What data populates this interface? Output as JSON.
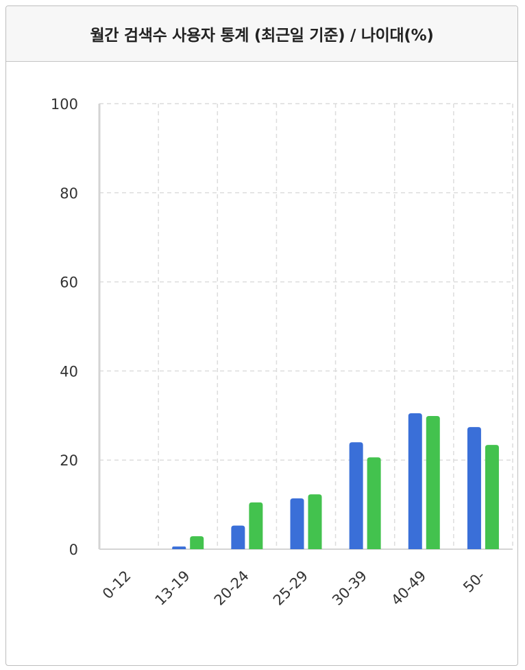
{
  "panel": {
    "title": "월간 검색수 사용자 통계 (최근일 기준) / 나이대(%)"
  },
  "chart_data": {
    "type": "bar",
    "categories": [
      "0-12",
      "13-19",
      "20-24",
      "25-29",
      "30-39",
      "40-49",
      "50-"
    ],
    "series": [
      {
        "values": [
          0,
          0.6,
          5.3,
          11.4,
          24.0,
          30.5,
          27.4
        ],
        "color": "#3a6fd8"
      },
      {
        "values": [
          0,
          2.9,
          10.5,
          12.3,
          20.6,
          29.9,
          23.4
        ],
        "color": "#43c24e"
      }
    ],
    "yticks": [
      0,
      20,
      40,
      60,
      80,
      100
    ],
    "ylim": [
      0,
      100
    ],
    "grid": true,
    "title": "",
    "xlabel": "",
    "ylabel": ""
  }
}
